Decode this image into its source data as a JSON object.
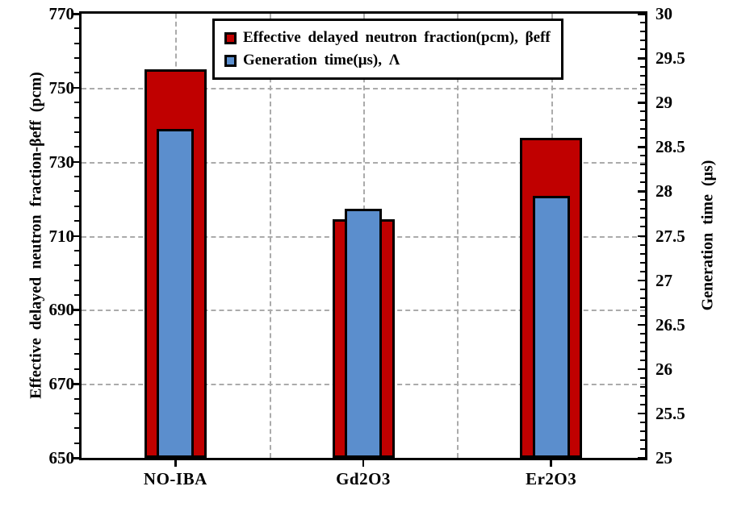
{
  "chart_data": {
    "type": "bar",
    "title": "",
    "categories": [
      "NO-IBA",
      "Gd2O3",
      "Er2O3"
    ],
    "series": [
      {
        "name": "Effective delayed neutron fraction(pcm), βeff",
        "axis": "left",
        "color": "#C00000",
        "values": [
          755,
          714.5,
          736.5
        ]
      },
      {
        "name": "Generation time(μs), Λ",
        "axis": "right",
        "color": "#5B8ECD",
        "values": [
          28.7,
          27.8,
          27.95
        ]
      }
    ],
    "left_axis": {
      "label": "Effective delayed neutron fraction-βeff (pcm)",
      "min": 650,
      "max": 770,
      "major_step": 20,
      "minor_step": 4,
      "tick_labels": [
        "650",
        "670",
        "690",
        "710",
        "730",
        "750",
        "770"
      ]
    },
    "right_axis": {
      "label": "Generation time (μs)",
      "min": 25,
      "max": 30,
      "major_step": 0.5,
      "minor_step": 0.1,
      "tick_labels": [
        "25",
        "25.5",
        "26",
        "26.5",
        "27",
        "27.5",
        "28",
        "28.5",
        "29",
        "29.5",
        "30"
      ]
    },
    "grid": {
      "horizontal_values_left_axis": [
        750,
        730,
        710,
        690,
        670
      ],
      "vertical_divisions": 6,
      "style": "dashed",
      "color": "#ABABAB"
    },
    "legend": {
      "position": "top-center-inside",
      "entries": [
        {
          "swatch_color": "#C00000",
          "label": "Effective delayed neutron fraction(pcm), βeff"
        },
        {
          "swatch_color": "#5B8ECD",
          "label": "Generation time(μs), Λ"
        }
      ]
    },
    "bar_border_color": "#000000",
    "background_color": "#FFFFFF"
  }
}
